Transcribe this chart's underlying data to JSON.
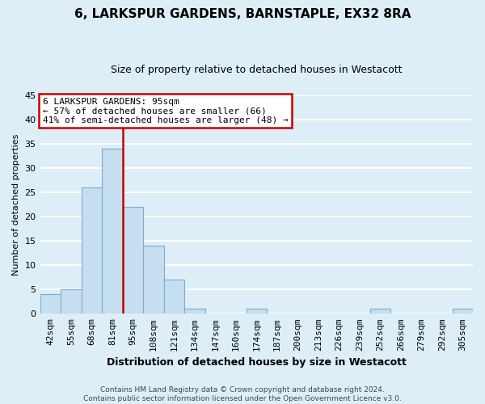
{
  "title": "6, LARKSPUR GARDENS, BARNSTAPLE, EX32 8RA",
  "subtitle": "Size of property relative to detached houses in Westacott",
  "xlabel": "Distribution of detached houses by size in Westacott",
  "ylabel": "Number of detached properties",
  "bin_labels": [
    "42sqm",
    "55sqm",
    "68sqm",
    "81sqm",
    "95sqm",
    "108sqm",
    "121sqm",
    "134sqm",
    "147sqm",
    "160sqm",
    "174sqm",
    "187sqm",
    "200sqm",
    "213sqm",
    "226sqm",
    "239sqm",
    "252sqm",
    "266sqm",
    "279sqm",
    "292sqm",
    "305sqm"
  ],
  "bar_heights": [
    4,
    5,
    26,
    34,
    22,
    14,
    7,
    1,
    0,
    0,
    1,
    0,
    0,
    0,
    0,
    0,
    1,
    0,
    0,
    0,
    1
  ],
  "bar_color": "#c5dff0",
  "property_line_x": 3.5,
  "property_line_color": "#cc0000",
  "ylim": [
    0,
    45
  ],
  "yticks": [
    0,
    5,
    10,
    15,
    20,
    25,
    30,
    35,
    40,
    45
  ],
  "annotation_title": "6 LARKSPUR GARDENS: 95sqm",
  "annotation_line1": "← 57% of detached houses are smaller (66)",
  "annotation_line2": "41% of semi-detached houses are larger (48) →",
  "annotation_box_facecolor": "#ffffff",
  "annotation_border_color": "#cc0000",
  "footer_line1": "Contains HM Land Registry data © Crown copyright and database right 2024.",
  "footer_line2": "Contains public sector information licensed under the Open Government Licence v3.0.",
  "background_color": "#ddeef7",
  "plot_background_color": "#ddeef7",
  "grid_color": "#ffffff",
  "title_fontsize": 11,
  "subtitle_fontsize": 9,
  "ylabel_fontsize": 8,
  "xlabel_fontsize": 9,
  "tick_fontsize": 8,
  "annotation_fontsize": 8
}
